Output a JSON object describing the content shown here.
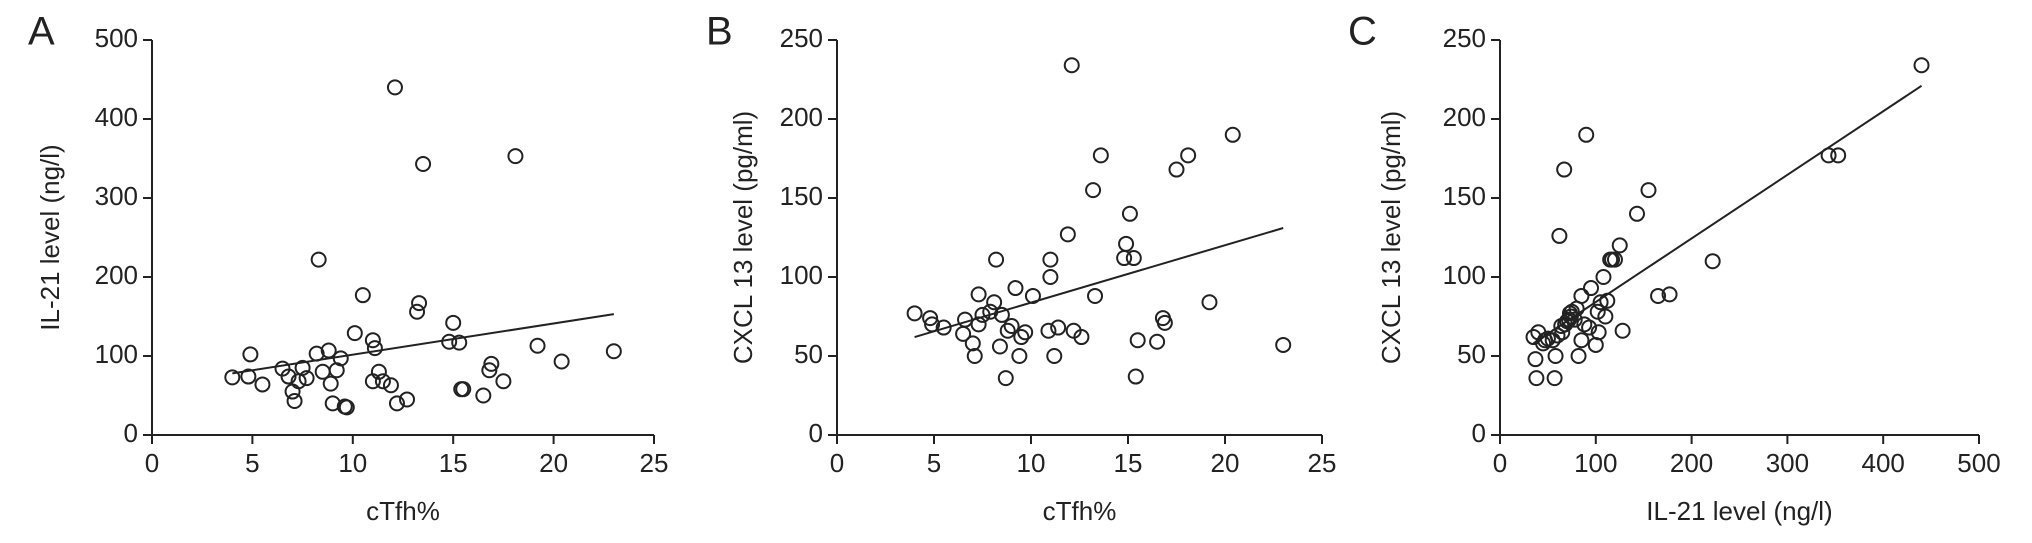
{
  "chart_data": [
    {
      "type": "scatter",
      "panel_label": "A",
      "x_label": "cTfh%",
      "y_label": "IL-21 level (ng/l)",
      "color": "#222222",
      "xlim": [
        0,
        25
      ],
      "xticks": [
        0,
        5,
        10,
        15,
        20,
        25
      ],
      "ylim": [
        0,
        500
      ],
      "yticks": [
        0,
        100,
        200,
        300,
        400,
        500
      ],
      "x": [
        4,
        4.8,
        4.9,
        5.5,
        6.5,
        6.8,
        7,
        7.1,
        7.3,
        7.5,
        7.7,
        8.2,
        8.3,
        8.5,
        8.8,
        8.9,
        9,
        9.2,
        9.4,
        9.6,
        9.7,
        10.1,
        10.5,
        11,
        11,
        11.1,
        11.3,
        11.5,
        11.9,
        12.1,
        12.2,
        12.7,
        13.2,
        13.3,
        13.5,
        14.8,
        15,
        15.3,
        15.4,
        15.5,
        16.5,
        16.8,
        16.9,
        17.5,
        18.1,
        19.2,
        20.4,
        23
      ],
      "values": [
        73,
        74,
        102,
        64,
        84,
        74,
        55,
        43,
        68,
        85,
        72,
        103,
        222,
        80,
        107,
        65,
        40,
        82,
        97,
        36,
        35,
        129,
        177,
        68,
        120,
        110,
        80,
        68,
        63,
        440,
        40,
        45,
        156,
        167,
        343,
        118,
        142,
        117,
        58,
        58,
        50,
        82,
        90,
        68,
        353,
        113,
        93,
        106
      ],
      "trendline": {
        "x": [
          4,
          23
        ],
        "values": [
          78,
          153
        ]
      }
    },
    {
      "type": "scatter",
      "panel_label": "B",
      "x_label": "cTfh%",
      "y_label": "CXCL 13 level (pg/ml)",
      "color": "#222222",
      "xlim": [
        0,
        25
      ],
      "xticks": [
        0,
        5,
        10,
        15,
        20,
        25
      ],
      "ylim": [
        0,
        250
      ],
      "yticks": [
        0,
        50,
        100,
        150,
        200,
        250
      ],
      "x": [
        4,
        4.8,
        4.9,
        5.5,
        6.5,
        6.6,
        7,
        7.1,
        7.3,
        7.3,
        7.5,
        7.9,
        8.1,
        8.2,
        8.4,
        8.5,
        8.7,
        8.8,
        9,
        9.2,
        9.4,
        9.5,
        9.7,
        10.1,
        10.9,
        11,
        11,
        11.2,
        11.4,
        11.9,
        12.1,
        12.2,
        12.6,
        13.2,
        13.3,
        13.6,
        14.8,
        14.9,
        15.1,
        15.3,
        15.4,
        15.5,
        16.5,
        16.8,
        16.9,
        17.5,
        18.1,
        19.2,
        20.4,
        23
      ],
      "values": [
        77,
        74,
        70,
        68,
        64,
        73,
        58,
        50,
        70,
        89,
        76,
        78,
        84,
        111,
        56,
        76,
        36,
        66,
        69,
        93,
        50,
        62,
        65,
        88,
        66,
        100,
        111,
        50,
        68,
        127,
        234,
        66,
        62,
        155,
        88,
        177,
        112,
        121,
        140,
        112,
        37,
        60,
        59,
        74,
        71,
        168,
        177,
        84,
        190,
        57
      ],
      "trendline": {
        "x": [
          4,
          23
        ],
        "values": [
          62,
          131
        ]
      }
    },
    {
      "type": "scatter",
      "panel_label": "C",
      "x_label": "IL-21 level (ng/l)",
      "y_label": "CXCL 13 level (pg/ml)",
      "color": "#222222",
      "xlim": [
        0,
        500
      ],
      "xticks": [
        0,
        100,
        200,
        300,
        400,
        500
      ],
      "ylim": [
        0,
        250
      ],
      "yticks": [
        0,
        50,
        100,
        150,
        200,
        250
      ],
      "x": [
        35,
        37,
        38,
        40,
        45,
        47,
        50,
        55,
        57,
        58,
        60,
        62,
        64,
        65,
        67,
        68,
        70,
        72,
        73,
        74,
        75,
        78,
        80,
        82,
        85,
        85,
        88,
        90,
        93,
        95,
        100,
        102,
        103,
        105,
        108,
        110,
        112,
        115,
        117,
        120,
        125,
        128,
        143,
        155,
        165,
        177,
        222,
        343,
        353,
        440
      ],
      "values": [
        62,
        48,
        36,
        65,
        58,
        60,
        61,
        60,
        36,
        50,
        63,
        126,
        69,
        65,
        168,
        70,
        72,
        73,
        77,
        75,
        78,
        73,
        80,
        50,
        88,
        60,
        70,
        190,
        68,
        93,
        57,
        78,
        65,
        84,
        100,
        75,
        85,
        111,
        111,
        111,
        120,
        66,
        140,
        155,
        88,
        89,
        110,
        177,
        177,
        234
      ],
      "trendline": {
        "x": [
          35,
          440
        ],
        "values": [
          58,
          221
        ]
      }
    }
  ]
}
